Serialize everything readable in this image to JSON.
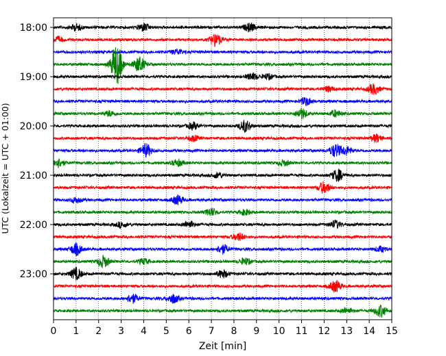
{
  "chart_data": {
    "type": "line",
    "xlabel": "Zeit  [min]",
    "ylabel": "UTC (Lokalzeit = UTC + 01:00)",
    "xlim": [
      0,
      15
    ],
    "x_ticks": [
      0,
      1,
      2,
      3,
      4,
      5,
      6,
      7,
      8,
      9,
      10,
      11,
      12,
      13,
      14,
      15
    ],
    "y_tick_labels": [
      "18:00",
      "19:00",
      "20:00",
      "21:00",
      "22:00",
      "23:00"
    ],
    "grid": "vertical dotted",
    "colors": [
      "#000000",
      "#ff0000",
      "#0000ff",
      "#008000"
    ],
    "trace_minutes": 15,
    "series": [
      {
        "start": "18:00",
        "color": "#000000",
        "events": [
          [
            1,
            0.5
          ],
          [
            4,
            0.6
          ],
          [
            8.7,
            0.6
          ]
        ]
      },
      {
        "start": "18:15",
        "color": "#ff0000",
        "events": [
          [
            7.2,
            1.0
          ],
          [
            0.2,
            0.4
          ]
        ]
      },
      {
        "start": "18:30",
        "color": "#0000ff",
        "events": [
          [
            5.5,
            0.4
          ]
        ]
      },
      {
        "start": "18:45",
        "color": "#008000",
        "events": [
          [
            2.8,
            3.2
          ],
          [
            3.8,
            1.2
          ]
        ]
      },
      {
        "start": "19:00",
        "color": "#000000",
        "events": [
          [
            8.8,
            0.5
          ],
          [
            9.5,
            0.4
          ]
        ]
      },
      {
        "start": "19:15",
        "color": "#ff0000",
        "events": [
          [
            14.2,
            0.8
          ],
          [
            12.2,
            0.4
          ]
        ]
      },
      {
        "start": "19:30",
        "color": "#0000ff",
        "events": [
          [
            11.2,
            0.6
          ]
        ]
      },
      {
        "start": "19:45",
        "color": "#008000",
        "events": [
          [
            11,
            0.8
          ],
          [
            12.5,
            0.5
          ],
          [
            2.5,
            0.4
          ]
        ]
      },
      {
        "start": "20:00",
        "color": "#000000",
        "events": [
          [
            8.5,
            0.9
          ],
          [
            6.2,
            0.5
          ]
        ]
      },
      {
        "start": "20:15",
        "color": "#ff0000",
        "events": [
          [
            14.3,
            0.6
          ],
          [
            6.2,
            0.4
          ]
        ]
      },
      {
        "start": "20:30",
        "color": "#0000ff",
        "events": [
          [
            4.1,
            1.0
          ],
          [
            12.5,
            1.0
          ],
          [
            13,
            0.6
          ]
        ]
      },
      {
        "start": "20:45",
        "color": "#008000",
        "events": [
          [
            0.2,
            0.7
          ],
          [
            5.5,
            0.5
          ],
          [
            10.2,
            0.4
          ]
        ]
      },
      {
        "start": "21:00",
        "color": "#000000",
        "events": [
          [
            12.6,
            0.9
          ],
          [
            7.3,
            0.4
          ]
        ]
      },
      {
        "start": "21:15",
        "color": "#ff0000",
        "events": [
          [
            12,
            0.9
          ]
        ]
      },
      {
        "start": "21:30",
        "color": "#0000ff",
        "events": [
          [
            5.5,
            0.7
          ],
          [
            1.0,
            0.4
          ]
        ]
      },
      {
        "start": "21:45",
        "color": "#008000",
        "events": [
          [
            7,
            0.6
          ],
          [
            8.5,
            0.4
          ]
        ]
      },
      {
        "start": "22:00",
        "color": "#000000",
        "events": [
          [
            12.5,
            0.6
          ],
          [
            6,
            0.5
          ],
          [
            3,
            0.4
          ]
        ]
      },
      {
        "start": "22:15",
        "color": "#ff0000",
        "events": [
          [
            8.2,
            0.6
          ]
        ]
      },
      {
        "start": "22:30",
        "color": "#0000ff",
        "events": [
          [
            1,
            0.9
          ],
          [
            7.5,
            0.7
          ],
          [
            14.5,
            0.4
          ]
        ]
      },
      {
        "start": "22:45",
        "color": "#008000",
        "events": [
          [
            2.2,
            0.9
          ],
          [
            8.5,
            0.5
          ],
          [
            4,
            0.4
          ]
        ]
      },
      {
        "start": "23:00",
        "color": "#000000",
        "events": [
          [
            1,
            0.9
          ],
          [
            7.5,
            0.6
          ]
        ]
      },
      {
        "start": "23:15",
        "color": "#ff0000",
        "events": [
          [
            12.5,
            0.9
          ]
        ]
      },
      {
        "start": "23:30",
        "color": "#0000ff",
        "events": [
          [
            3.5,
            0.7
          ],
          [
            5.3,
            0.7
          ]
        ]
      },
      {
        "start": "23:45",
        "color": "#008000",
        "events": [
          [
            14.5,
            0.9
          ],
          [
            13,
            0.4
          ]
        ]
      }
    ]
  }
}
